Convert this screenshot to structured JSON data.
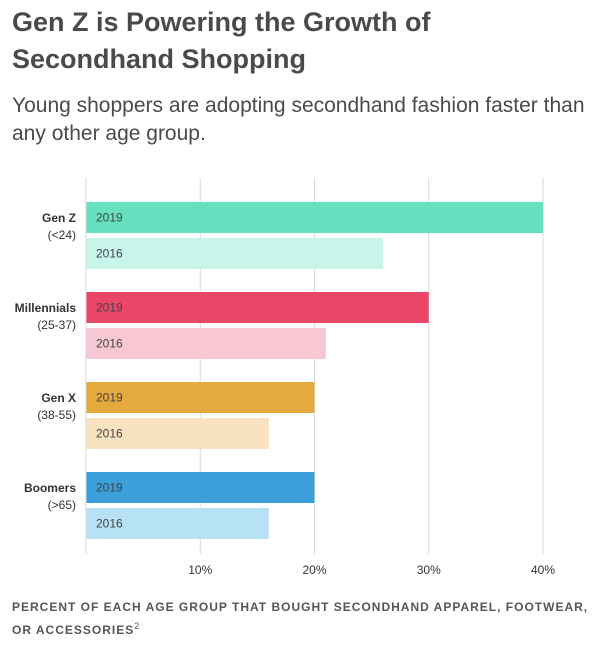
{
  "header": {
    "title": "Gen Z is Powering the Growth of Secondhand Shopping",
    "subtitle": "Young shoppers are adopting secondhand fashion faster than any other age group."
  },
  "footnote": {
    "text": "Percent of each age group that bought secondhand apparel, footwear, or accessories",
    "ref": "2"
  },
  "chart_data": {
    "type": "bar",
    "orientation": "horizontal",
    "x_ticks": [
      10,
      20,
      30,
      40
    ],
    "x_tick_labels": [
      "10%",
      "20%",
      "30%",
      "40%"
    ],
    "xlim": [
      0,
      40
    ],
    "grid": true,
    "categories": [
      {
        "name": "Gen Z",
        "range": "(<24)"
      },
      {
        "name": "Millennials",
        "range": "(25-37)"
      },
      {
        "name": "Gen X",
        "range": "(38-55)"
      },
      {
        "name": "Boomers",
        "range": "(>65)"
      }
    ],
    "series": [
      {
        "name": "2019",
        "values": [
          40,
          30,
          20,
          20
        ],
        "colors": [
          "#66e0bf",
          "#ea4667",
          "#e4aa3e",
          "#3b9fd9"
        ]
      },
      {
        "name": "2016",
        "values": [
          26,
          21,
          16,
          16
        ],
        "colors": [
          "#c7f5e9",
          "#f8c7d4",
          "#f9e2c0",
          "#b7e1f5"
        ]
      }
    ]
  }
}
